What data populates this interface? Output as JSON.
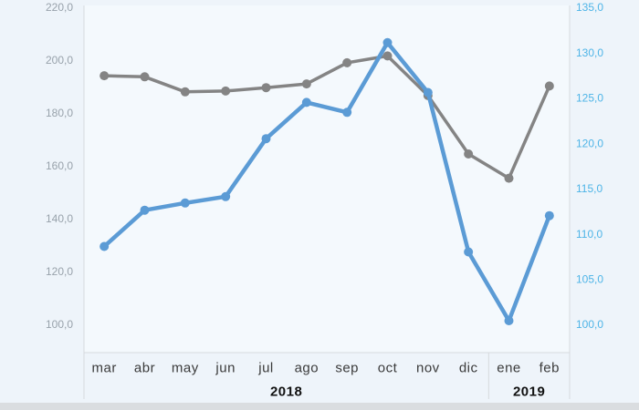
{
  "chart_data": {
    "type": "line",
    "title": "",
    "categories": [
      "mar",
      "abr",
      "may",
      "jun",
      "jul",
      "ago",
      "sep",
      "oct",
      "nov",
      "dic",
      "ene",
      "feb"
    ],
    "year_groups": [
      {
        "label": "2018",
        "start_index": 0,
        "end_index": 9
      },
      {
        "label": "2019",
        "start_index": 10,
        "end_index": 11
      }
    ],
    "series": [
      {
        "name": "gray-series",
        "axis": "left",
        "color": "#848484",
        "line_width": 3.5,
        "values": [
          194.1,
          193.7,
          188.0,
          188.3,
          189.6,
          191.0,
          199.0,
          201.6,
          186.6,
          164.5,
          155.3,
          190.2
        ]
      },
      {
        "name": "blue-series",
        "axis": "right",
        "color": "#5b9bd5",
        "line_width": 4.5,
        "values": [
          108.6,
          112.6,
          113.4,
          114.1,
          120.5,
          124.5,
          123.4,
          131.1,
          125.6,
          108.0,
          100.4,
          112.0
        ]
      }
    ],
    "left_axis": {
      "tick_labels": [
        "220,0",
        "200,0",
        "180,0",
        "160,0",
        "140,0",
        "120,0",
        "100,0"
      ],
      "tick_values": [
        220,
        200,
        180,
        160,
        140,
        120,
        100
      ],
      "label_color": "#98a2ab"
    },
    "right_axis": {
      "tick_labels": [
        "135,0",
        "130,0",
        "125,0",
        "120,0",
        "115,0",
        "110,0",
        "105,0",
        "100,0"
      ],
      "tick_values": [
        135,
        130,
        125,
        120,
        115,
        110,
        105,
        100
      ],
      "label_color": "#4db4e7"
    },
    "legend": "none",
    "grid": "off"
  },
  "colors": {
    "page_background": "#eef4fa",
    "plot_background": "#f4f9fd",
    "axis_line": "#d6dade",
    "month_label": "#3a3a3a",
    "year_label": "#111111",
    "bottom_strip": "#dadde0"
  }
}
